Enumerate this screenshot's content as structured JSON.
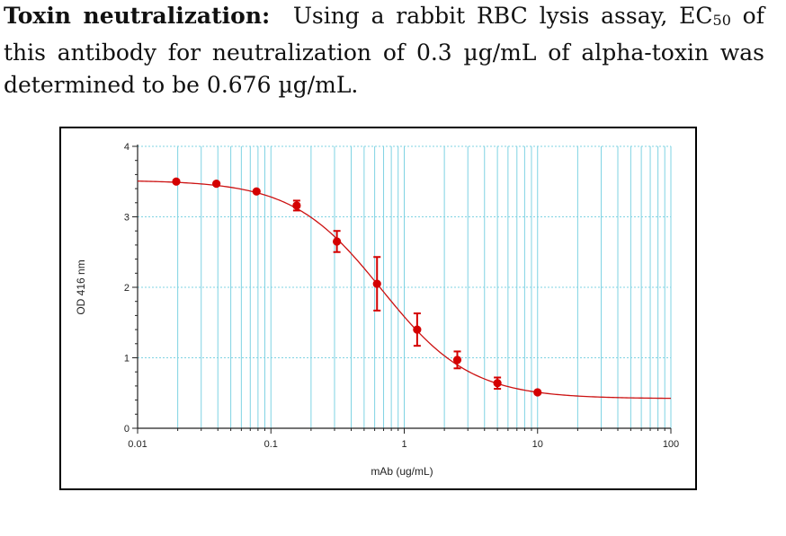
{
  "caption": {
    "bold": "Toxin neutralization:",
    "text1": "Using a rabbit RBC lysis assay, EC",
    "sub": "50",
    "text2": "of this antibody for neutralization of 0.3 µg/mL of alpha-toxin was determined to be 0.676 µg/mL."
  },
  "chart_data": {
    "type": "scatter",
    "title": "",
    "xlabel": "mAb (ug/mL)",
    "ylabel": "OD 416 nm",
    "xscale": "log",
    "xlim": [
      0.01,
      100
    ],
    "ylim": [
      0,
      4
    ],
    "x_ticks": [
      "0.01",
      "0.1",
      "1",
      "10",
      "100"
    ],
    "y_ticks": [
      "0",
      "1",
      "2",
      "3",
      "4"
    ],
    "grid": "x major and minor gridlines",
    "series": [
      {
        "points": [
          {
            "x": 0.0195,
            "y": 3.5,
            "err": 0.02
          },
          {
            "x": 0.039,
            "y": 3.47,
            "err": 0.02
          },
          {
            "x": 0.078,
            "y": 3.36,
            "err": 0.03
          },
          {
            "x": 0.156,
            "y": 3.16,
            "err": 0.07
          },
          {
            "x": 0.3125,
            "y": 2.65,
            "err": 0.15
          },
          {
            "x": 0.625,
            "y": 2.05,
            "err": 0.38
          },
          {
            "x": 1.25,
            "y": 1.4,
            "err": 0.23
          },
          {
            "x": 2.5,
            "y": 0.97,
            "err": 0.12
          },
          {
            "x": 5,
            "y": 0.64,
            "err": 0.08
          },
          {
            "x": 10,
            "y": 0.51,
            "err": 0.02
          }
        ]
      }
    ],
    "fit": {
      "top": 3.52,
      "bottom": 0.42,
      "ec50": 0.676,
      "hill": 1.3
    },
    "colors": {
      "points": "#d40000",
      "curve": "#cc1111",
      "grid": "#7fd3e3"
    }
  }
}
